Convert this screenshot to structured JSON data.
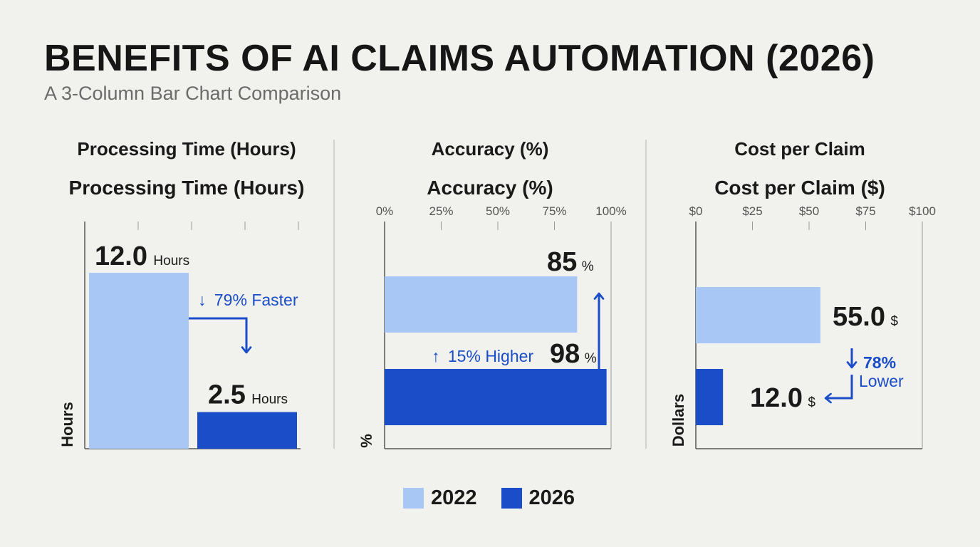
{
  "header": {
    "title": "BENEFITS OF AI CLAIMS AUTOMATION (2026)",
    "subtitle": "A 3-Column Bar Chart Comparison"
  },
  "colors": {
    "y2022": "#a9c7f4",
    "y2026": "#1a4dc7",
    "annotation": "#1a4dc7",
    "axis": "#555555"
  },
  "legend": [
    {
      "label": "2022",
      "color": "#a9c7f4"
    },
    {
      "label": "2026",
      "color": "#1a4dc7"
    }
  ],
  "chart_data": [
    {
      "type": "bar",
      "orientation": "vertical",
      "heading": "Processing Time (Hours)",
      "title": "Processing Time (Hours)",
      "ylabel": "Hours",
      "categories": [
        "2022",
        "2026"
      ],
      "values": [
        12.0,
        2.5
      ],
      "value_labels": [
        "12.0",
        "2.5"
      ],
      "unit_label": "Hours",
      "ylim": [
        0,
        15.5
      ],
      "annotation": {
        "arrow": "↓",
        "text": "79% Faster"
      }
    },
    {
      "type": "bar",
      "orientation": "horizontal",
      "heading": "Accuracy (%)",
      "title": "Accuracy (%)",
      "ylabel": "%",
      "categories": [
        "2022",
        "2026"
      ],
      "values": [
        85,
        98
      ],
      "value_labels": [
        "85",
        "98"
      ],
      "unit_label": "%",
      "xlim": [
        0,
        100
      ],
      "ticks": [
        "0%",
        "25%",
        "50%",
        "75%",
        "100%"
      ],
      "annotation": {
        "arrow": "↑",
        "text": "15% Higher"
      }
    },
    {
      "type": "bar",
      "orientation": "horizontal",
      "heading": "Cost per Claim",
      "title": "Cost per Claim ($)",
      "ylabel": "Dollars",
      "categories": [
        "2022",
        "2026"
      ],
      "values": [
        55.0,
        12.0
      ],
      "value_labels": [
        "55.0",
        "12.0"
      ],
      "unit_label": "$",
      "xlim": [
        0,
        100
      ],
      "ticks": [
        "$0",
        "$25",
        "$50",
        "$75",
        "$100"
      ],
      "annotation": {
        "arrow": "↓",
        "text_line1": "78%",
        "text_line2": "Lower"
      }
    }
  ]
}
